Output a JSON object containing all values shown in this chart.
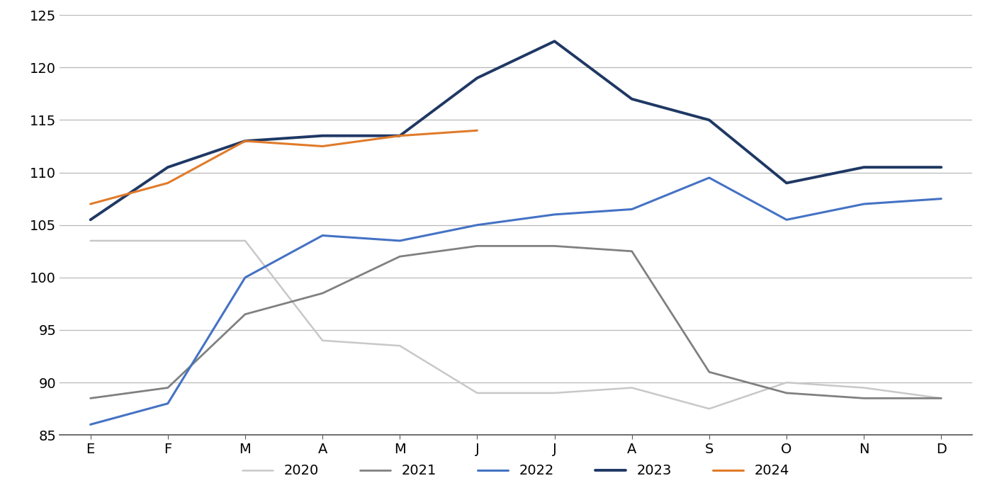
{
  "months": [
    "E",
    "F",
    "M",
    "A",
    "M",
    "J",
    "J",
    "A",
    "S",
    "O",
    "N",
    "D"
  ],
  "series": {
    "2020": [
      103.5,
      103.5,
      103.5,
      94.0,
      93.5,
      89.0,
      89.0,
      89.5,
      87.5,
      90.0,
      89.5,
      88.5
    ],
    "2021": [
      88.5,
      89.5,
      96.5,
      98.5,
      102.0,
      103.0,
      103.0,
      102.5,
      91.0,
      89.0,
      88.5,
      88.5
    ],
    "2022": [
      86.0,
      88.0,
      100.0,
      104.0,
      103.5,
      105.0,
      106.0,
      106.5,
      109.5,
      105.5,
      107.0,
      107.5
    ],
    "2023": [
      105.5,
      110.5,
      113.0,
      113.5,
      113.5,
      119.0,
      122.5,
      117.0,
      115.0,
      109.0,
      110.5,
      110.5
    ],
    "2024": [
      107.0,
      109.0,
      113.0,
      112.5,
      113.5,
      114.0,
      null,
      null,
      null,
      null,
      null,
      null
    ]
  },
  "colors": {
    "2020": "#c8c8c8",
    "2021": "#808080",
    "2022": "#4472c4",
    "2023": "#1f3864",
    "2024": "#e07b2a"
  },
  "line_widths": {
    "2020": 1.8,
    "2021": 2.0,
    "2022": 2.2,
    "2023": 2.8,
    "2024": 2.2
  },
  "ylim": [
    85,
    125
  ],
  "yticks": [
    85,
    90,
    95,
    100,
    105,
    110,
    115,
    120,
    125
  ],
  "background_color": "#ffffff",
  "grid_color": "#b8b8b8",
  "legend_order": [
    "2020",
    "2021",
    "2022",
    "2023",
    "2024"
  ]
}
